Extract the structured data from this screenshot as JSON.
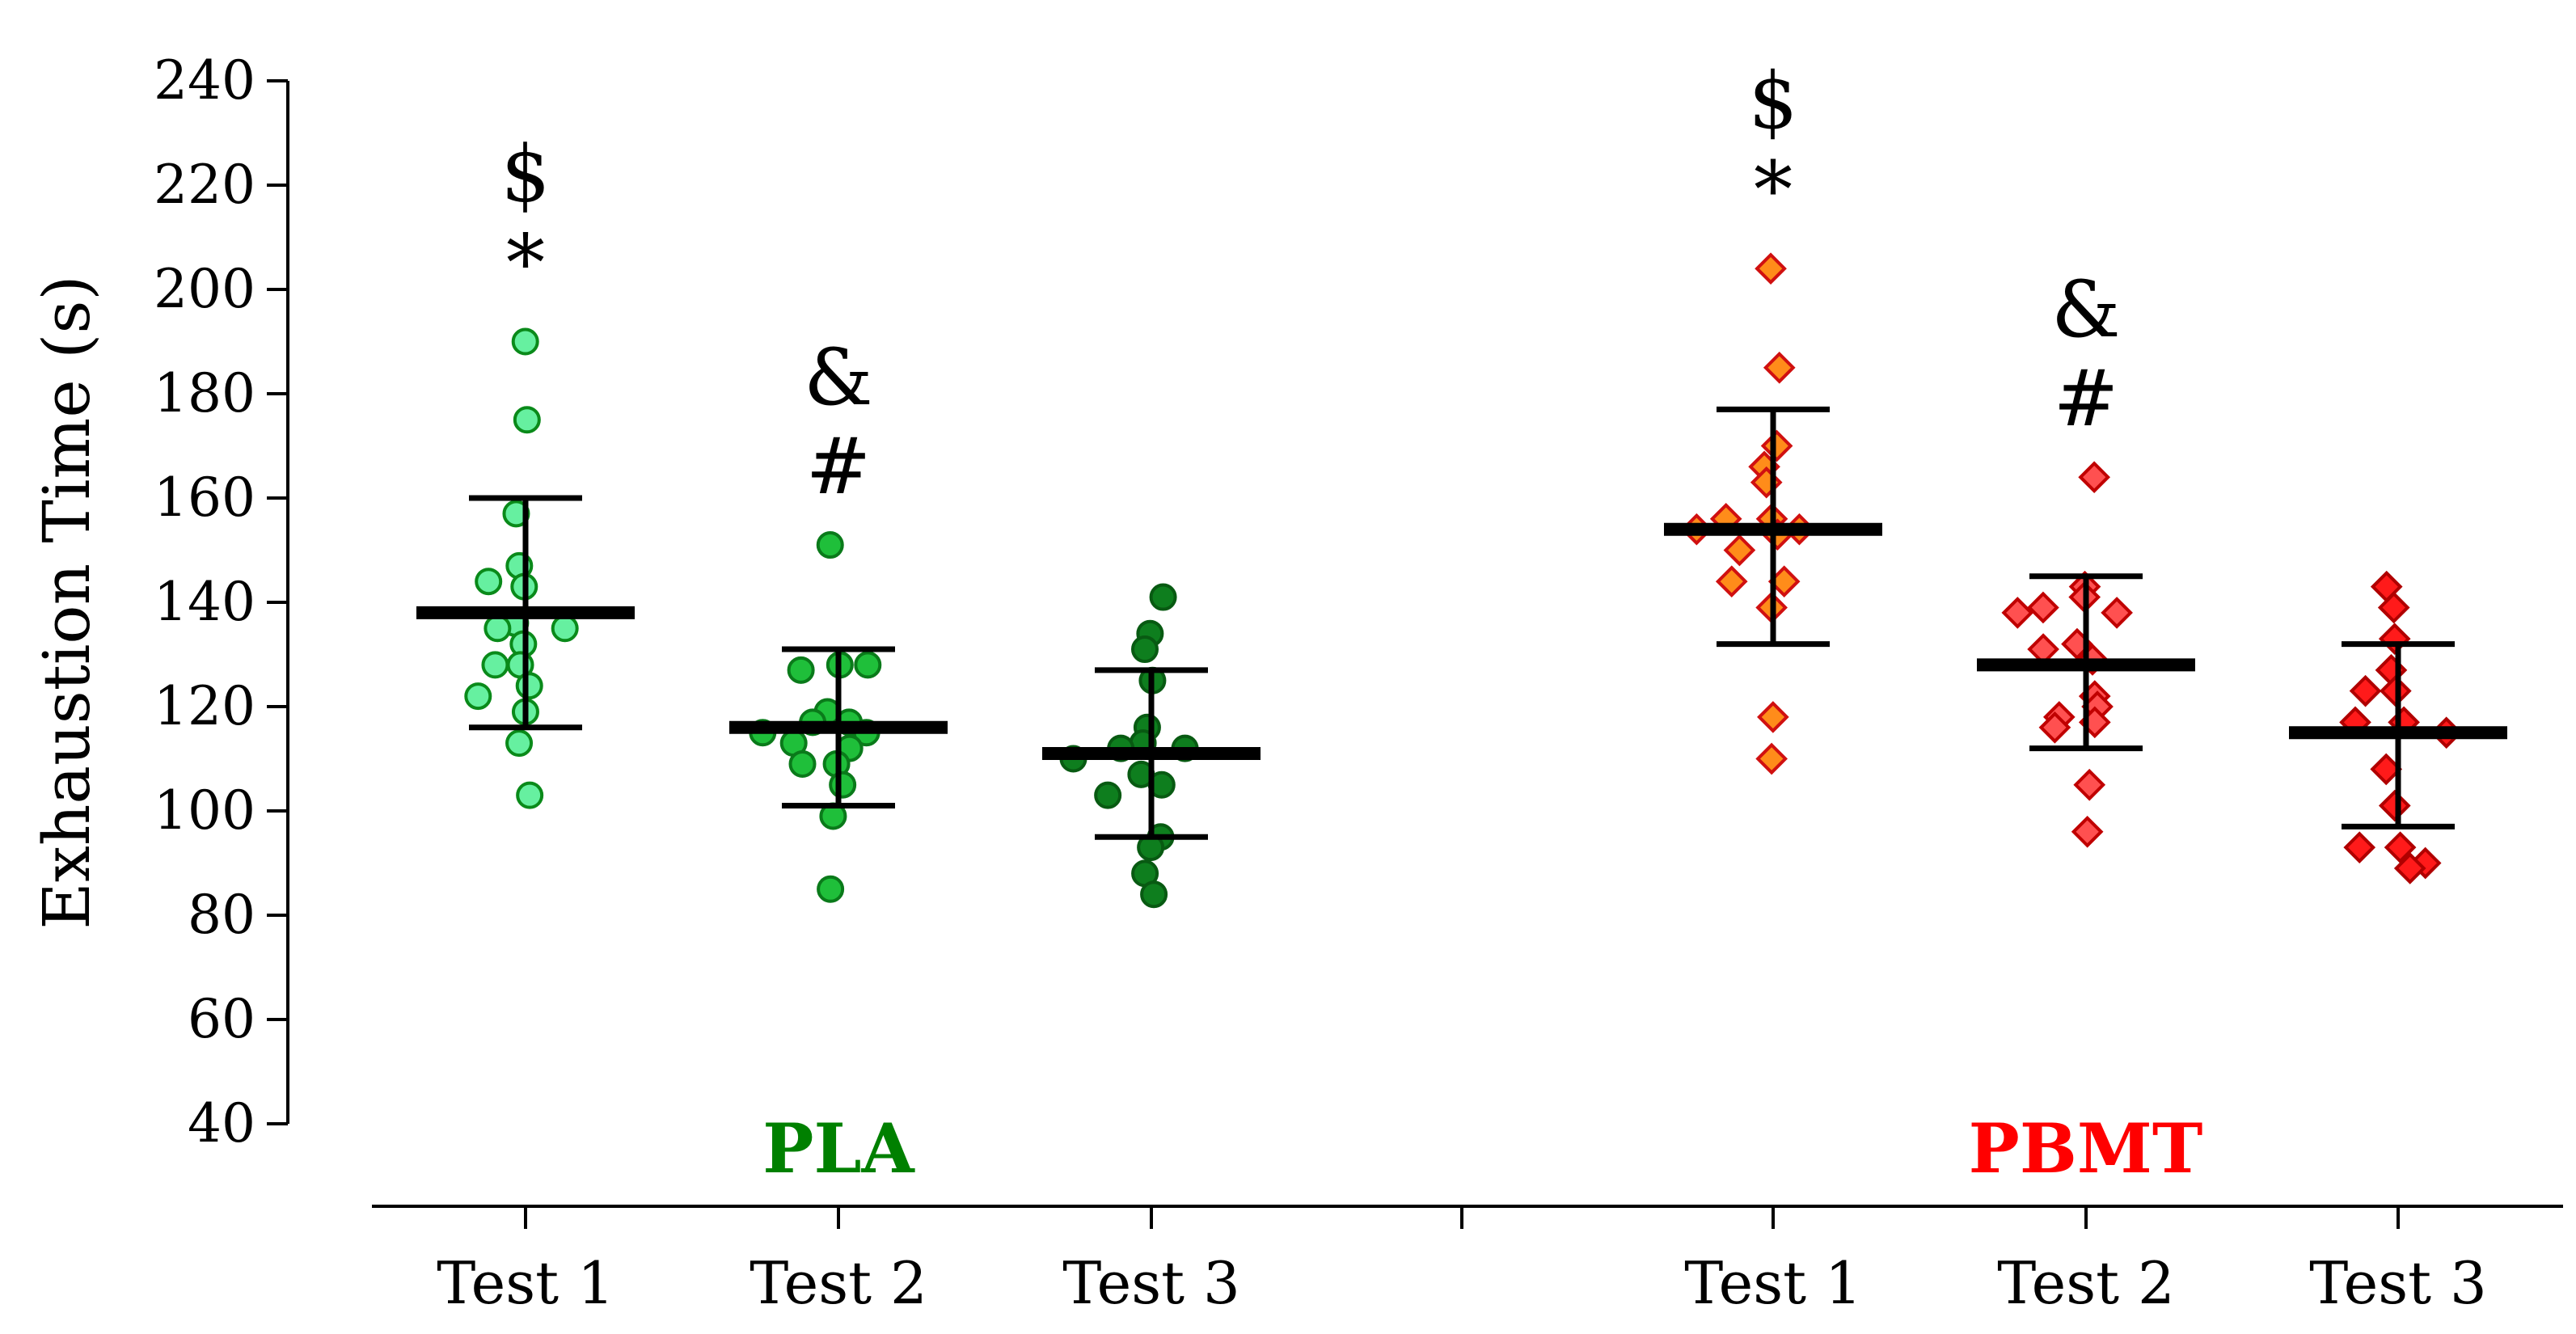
{
  "chart_data": {
    "type": "scatter",
    "ylabel": "Exhaustion Time (s)",
    "ylim": [
      40,
      240
    ],
    "yticks": [
      40,
      60,
      80,
      100,
      120,
      140,
      160,
      180,
      200,
      220,
      240
    ],
    "grid": false,
    "groups": [
      {
        "name": "PLA",
        "color": "#008000",
        "categories": [
          "Test 1",
          "Test 2",
          "Test 3"
        ],
        "series": [
          {
            "category": "Test 1",
            "marker": "circle",
            "fill": "#66f0a0",
            "stroke": "#0a8a1a",
            "mean": 138,
            "sd_low": 116,
            "sd_high": 160,
            "values": [
              190,
              175,
              157,
              147,
              143,
              144,
              136,
              135,
              135,
              132,
              128,
              128,
              124,
              122,
              119,
              113,
              103
            ],
            "annotations": [
              "$",
              "*"
            ]
          },
          {
            "category": "Test 2",
            "marker": "circle",
            "fill": "#1fbf3a",
            "stroke": "#0a7a1a",
            "mean": 116,
            "sd_low": 101,
            "sd_high": 131,
            "values": [
              151,
              128,
              127,
              128,
              119,
              117,
              117,
              115,
              115,
              112,
              113,
              109,
              109,
              105,
              99,
              85
            ],
            "annotations": [
              "&",
              "#"
            ]
          },
          {
            "category": "Test 3",
            "marker": "circle",
            "fill": "#0e7e1e",
            "stroke": "#085a12",
            "mean": 111,
            "sd_low": 95,
            "sd_high": 127,
            "values": [
              141,
              134,
              131,
              125,
              116,
              113,
              112,
              112,
              110,
              107,
              105,
              103,
              95,
              93,
              88,
              84
            ],
            "annotations": []
          }
        ]
      },
      {
        "name": "PBMT",
        "color": "#ff0000",
        "categories": [
          "Test 1",
          "Test 2",
          "Test 3"
        ],
        "series": [
          {
            "category": "Test 1",
            "marker": "diamond",
            "fill": "#ff8c1a",
            "stroke": "#d01010",
            "mean": 154,
            "sd_low": 132,
            "sd_high": 177,
            "values": [
              204,
              185,
              170,
              166,
              163,
              156,
              156,
              154,
              154,
              153,
              150,
              144,
              144,
              139,
              118,
              110
            ],
            "annotations": [
              "$",
              "*"
            ]
          },
          {
            "category": "Test 2",
            "marker": "diamond",
            "fill": "#ff5050",
            "stroke": "#c00000",
            "mean": 128,
            "sd_low": 112,
            "sd_high": 145,
            "values": [
              164,
              143,
              141,
              139,
              138,
              138,
              132,
              131,
              129,
              122,
              120,
              118,
              117,
              116,
              105,
              96
            ],
            "annotations": [
              "&",
              "#"
            ]
          },
          {
            "category": "Test 3",
            "marker": "diamond",
            "fill": "#ff1a1a",
            "stroke": "#b00000",
            "mean": 115,
            "sd_low": 97,
            "sd_high": 132,
            "values": [
              143,
              139,
              133,
              127,
              123,
              123,
              117,
              117,
              115,
              108,
              101,
              93,
              93,
              90,
              89
            ],
            "annotations": []
          }
        ]
      }
    ]
  }
}
